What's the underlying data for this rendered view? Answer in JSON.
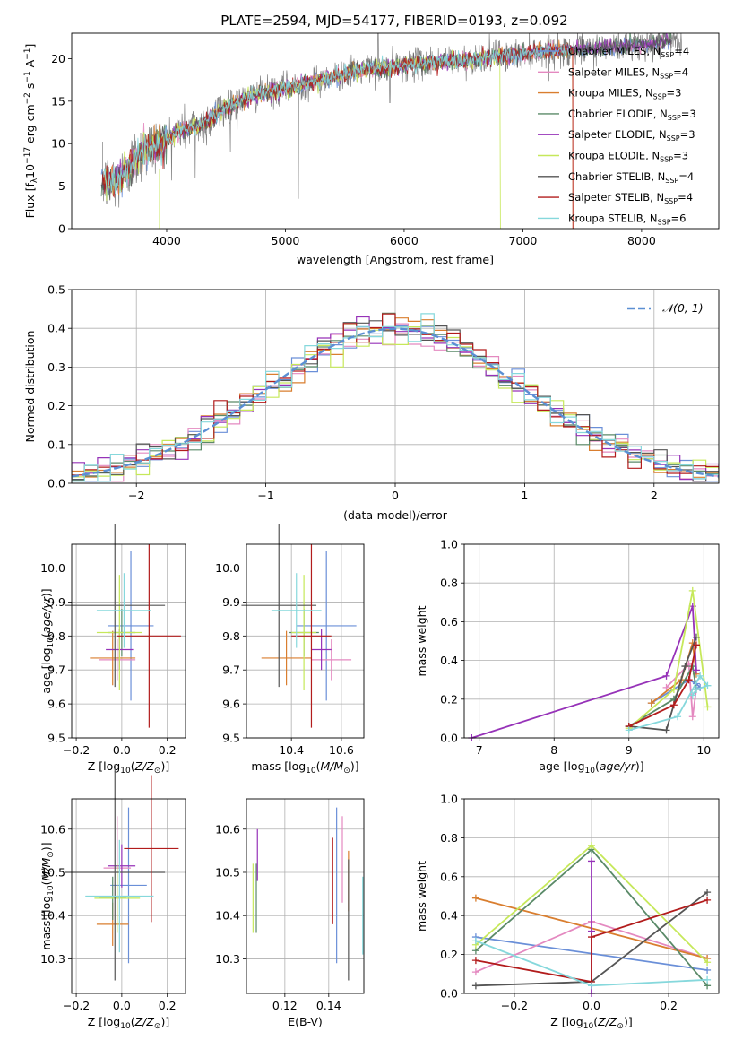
{
  "colors": {
    "chabrier_miles": "#6a8fd8",
    "salpeter_miles": "#e489c0",
    "kroupa_miles": "#d97e2f",
    "chabrier_elodie": "#5a8a68",
    "salpeter_elodie": "#9632b8",
    "kroupa_elodie": "#c6e85a",
    "chabrier_stelib": "#555555",
    "salpeter_stelib": "#b21c1c",
    "kroupa_stelib": "#86d8dc",
    "data": "#808080",
    "gauss": "#5b8fd3"
  },
  "legend": [
    {
      "name": "Chabrier MILES, N",
      "sub": "SSP",
      "rest": "=4",
      "color": "chabrier_miles"
    },
    {
      "name": "Salpeter MILES, N",
      "sub": "SSP",
      "rest": "=4",
      "color": "salpeter_miles"
    },
    {
      "name": "Kroupa MILES, N",
      "sub": "SSP",
      "rest": "=3",
      "color": "kroupa_miles"
    },
    {
      "name": "Chabrier ELODIE, N",
      "sub": "SSP",
      "rest": "=3",
      "color": "chabrier_elodie"
    },
    {
      "name": "Salpeter ELODIE, N",
      "sub": "SSP",
      "rest": "=3",
      "color": "salpeter_elodie"
    },
    {
      "name": "Kroupa ELODIE, N",
      "sub": "SSP",
      "rest": "=3",
      "color": "kroupa_elodie"
    },
    {
      "name": "Chabrier STELIB, N",
      "sub": "SSP",
      "rest": "=4",
      "color": "chabrier_stelib"
    },
    {
      "name": "Salpeter STELIB, N",
      "sub": "SSP",
      "rest": "=4",
      "color": "salpeter_stelib"
    },
    {
      "name": "Kroupa STELIB, N",
      "sub": "SSP",
      "rest": "=6",
      "color": "kroupa_stelib"
    }
  ],
  "chart_data": [
    {
      "type": "line",
      "title": "PLATE=2594, MJD=54177, FIBERID=0193, z=0.092",
      "xlabel": "wavelength [Angstrom, rest frame]",
      "ylabel": "Flux [f",
      "ylabel_parts": [
        "Flux [f",
        "λ",
        "10",
        "−17",
        " erg cm",
        "−2",
        " s",
        "−1",
        " A",
        "−1",
        "]"
      ],
      "xlim": [
        3200,
        8650
      ],
      "ylim": [
        0,
        23
      ],
      "xticks": [
        4000,
        5000,
        6000,
        7000,
        8000
      ],
      "yticks": [
        0,
        5,
        10,
        15,
        20
      ],
      "continuum_x": [
        3450,
        3600,
        3800,
        3950,
        4100,
        4300,
        4500,
        4700,
        4900,
        5100,
        5300,
        5500,
        5700,
        5900,
        6100,
        6300,
        6500,
        6700,
        6900,
        7100,
        7300,
        7500,
        7700,
        7900,
        8100,
        8300
      ],
      "continuum_y": [
        5.2,
        5.8,
        9.2,
        10.0,
        11.5,
        12.2,
        14.3,
        15.5,
        16.2,
        16.8,
        17.5,
        18.2,
        18.8,
        19.0,
        19.4,
        19.6,
        19.8,
        20.2,
        20.4,
        20.8,
        20.9,
        21.1,
        21.3,
        21.6,
        21.8,
        22.2
      ],
      "grid": false,
      "legend_position": "right"
    },
    {
      "type": "area",
      "xlabel": "(data-model)/error",
      "ylabel": "Normed distribution",
      "xlim": [
        -2.5,
        2.5
      ],
      "ylim": [
        0,
        0.5
      ],
      "xticks": [
        -2,
        -1,
        0,
        1,
        2
      ],
      "xtick_labels": [
        "−2",
        "−1",
        "0",
        "1",
        "2"
      ],
      "yticks": [
        0.0,
        0.1,
        0.2,
        0.3,
        0.4,
        0.5
      ],
      "ytick_labels": [
        "0.0",
        "0.1",
        "0.2",
        "0.3",
        "0.4",
        "0.5"
      ],
      "bin_width": 0.1,
      "gauss_label": "𝒩(0, 1)",
      "grid": true,
      "legend_position": "top-right"
    },
    {
      "type": "scatter",
      "xlabel": "Z [log",
      "xlabel_parts": [
        "Z [log",
        "10",
        "(",
        "Z/Z",
        "⊙",
        ")]"
      ],
      "ylabel_parts": [
        "age  [log",
        "10",
        "(",
        "age/yr",
        ")]"
      ],
      "xlim": [
        -0.22,
        0.28
      ],
      "ylim": [
        9.5,
        10.07
      ],
      "xticks": [
        -0.2,
        0.0,
        0.2
      ],
      "xtick_labels": [
        "−0.2",
        "0.0",
        "0.2"
      ],
      "yticks": [
        9.5,
        9.6,
        9.7,
        9.8,
        9.9,
        10.0
      ],
      "ytick_labels": [
        "9.5",
        "9.6",
        "9.7",
        "9.8",
        "9.9",
        "10.0"
      ],
      "points": [
        {
          "c": "chabrier_miles",
          "x": 0.04,
          "y": 9.83,
          "xe": 0.1,
          "ye": 0.22
        },
        {
          "c": "salpeter_miles",
          "x": -0.02,
          "y": 9.73,
          "xe": 0.08,
          "ye": 0.06
        },
        {
          "c": "kroupa_miles",
          "x": -0.04,
          "y": 9.735,
          "xe": 0.1,
          "ye": 0.08
        },
        {
          "c": "chabrier_elodie",
          "x": 0.0,
          "y": 9.81,
          "xe": 0.06,
          "ye": 0.07
        },
        {
          "c": "salpeter_elodie",
          "x": -0.01,
          "y": 9.76,
          "xe": 0.06,
          "ye": 0.06
        },
        {
          "c": "kroupa_elodie",
          "x": -0.01,
          "y": 9.81,
          "xe": 0.1,
          "ye": 0.17
        },
        {
          "c": "chabrier_stelib",
          "x": -0.03,
          "y": 9.89,
          "xe": 0.22,
          "ye": 0.24
        },
        {
          "c": "salpeter_stelib",
          "x": 0.12,
          "y": 9.8,
          "xe": 0.14,
          "ye": 0.27
        },
        {
          "c": "kroupa_stelib",
          "x": 0.01,
          "y": 9.875,
          "xe": 0.12,
          "ye": 0.11
        }
      ]
    },
    {
      "type": "scatter",
      "xlabel_parts": [
        "mass [log",
        "10",
        "(",
        "M/M",
        "⊙",
        ")]"
      ],
      "xlim": [
        10.22,
        10.69
      ],
      "ylim": [
        9.5,
        10.07
      ],
      "xticks": [
        10.4,
        10.6
      ],
      "xtick_labels": [
        "10.4",
        "10.6"
      ],
      "yticks": [
        9.5,
        9.6,
        9.7,
        9.8,
        9.9,
        10.0
      ],
      "ytick_labels": [
        "9.5",
        "9.6",
        "9.7",
        "9.8",
        "9.9",
        "10.0"
      ],
      "points": [
        {
          "c": "chabrier_miles",
          "x": 10.54,
          "y": 9.83,
          "xe": 0.12,
          "ye": 0.22
        },
        {
          "c": "salpeter_miles",
          "x": 10.56,
          "y": 9.73,
          "xe": 0.08,
          "ye": 0.06
        },
        {
          "c": "kroupa_miles",
          "x": 10.38,
          "y": 9.735,
          "xe": 0.1,
          "ye": 0.08
        },
        {
          "c": "chabrier_elodie",
          "x": 10.45,
          "y": 9.81,
          "xe": 0.06,
          "ye": 0.07
        },
        {
          "c": "salpeter_elodie",
          "x": 10.52,
          "y": 9.76,
          "xe": 0.04,
          "ye": 0.06
        },
        {
          "c": "kroupa_elodie",
          "x": 10.45,
          "y": 9.81,
          "xe": 0.05,
          "ye": 0.17
        },
        {
          "c": "chabrier_stelib",
          "x": 10.35,
          "y": 9.89,
          "xe": 0.15,
          "ye": 0.24
        },
        {
          "c": "salpeter_stelib",
          "x": 10.48,
          "y": 9.8,
          "xe": 0.08,
          "ye": 0.27
        },
        {
          "c": "kroupa_stelib",
          "x": 10.42,
          "y": 9.875,
          "xe": 0.1,
          "ye": 0.11
        }
      ]
    },
    {
      "type": "line",
      "xlabel_parts": [
        "age  [log",
        "10",
        "(",
        "age/yr",
        ")]"
      ],
      "ylabel": "mass weight",
      "xlim": [
        6.8,
        10.2
      ],
      "ylim": [
        0,
        1
      ],
      "xticks": [
        7,
        8,
        9,
        10
      ],
      "xtick_labels": [
        "7",
        "8",
        "9",
        "10"
      ],
      "yticks": [
        0.0,
        0.2,
        0.4,
        0.6,
        0.8,
        1.0
      ],
      "ytick_labels": [
        "0.0",
        "0.2",
        "0.4",
        "0.6",
        "0.8",
        "1.0"
      ],
      "grid": true,
      "series": [
        {
          "c": "chabrier_miles",
          "x": [
            9.3,
            9.8,
            9.9,
            9.95
          ],
          "y": [
            0.18,
            0.3,
            0.28,
            0.26
          ]
        },
        {
          "c": "salpeter_miles",
          "x": [
            9.5,
            9.8,
            9.85,
            9.9
          ],
          "y": [
            0.26,
            0.38,
            0.11,
            0.25
          ]
        },
        {
          "c": "kroupa_miles",
          "x": [
            9.3,
            9.7,
            9.85,
            9.9
          ],
          "y": [
            0.18,
            0.3,
            0.49,
            0.33
          ]
        },
        {
          "c": "chabrier_elodie",
          "x": [
            9.0,
            9.6,
            9.85,
            9.9
          ],
          "y": [
            0.06,
            0.2,
            0.37,
            0.25
          ]
        },
        {
          "c": "salpeter_elodie",
          "x": [
            6.9,
            9.5,
            9.85,
            9.9
          ],
          "y": [
            0.0,
            0.32,
            0.68,
            0.35
          ]
        },
        {
          "c": "kroupa_elodie",
          "x": [
            9.0,
            9.6,
            9.85,
            10.05
          ],
          "y": [
            0.05,
            0.25,
            0.76,
            0.16
          ]
        },
        {
          "c": "chabrier_stelib",
          "x": [
            9.0,
            9.5,
            9.75,
            9.9
          ],
          "y": [
            0.06,
            0.04,
            0.37,
            0.52
          ]
        },
        {
          "c": "salpeter_stelib",
          "x": [
            9.0,
            9.6,
            9.8,
            9.9
          ],
          "y": [
            0.06,
            0.17,
            0.3,
            0.48
          ]
        },
        {
          "c": "kroupa_stelib",
          "x": [
            9.0,
            9.65,
            9.95,
            10.05,
            9.9,
            9.85
          ],
          "y": [
            0.04,
            0.11,
            0.32,
            0.27,
            0.25,
            0.22
          ]
        }
      ]
    },
    {
      "type": "scatter",
      "xlabel_parts": [
        "Z [log",
        "10",
        "(",
        "Z/Z",
        "⊙",
        ")]"
      ],
      "ylabel_parts": [
        "mass [log",
        "10",
        "(",
        "M/M",
        "⊙",
        ")]"
      ],
      "xlim": [
        -0.22,
        0.28
      ],
      "ylim": [
        10.22,
        10.67
      ],
      "xticks": [
        -0.2,
        0.0,
        0.2
      ],
      "xtick_labels": [
        "−0.2",
        "0.0",
        "0.2"
      ],
      "yticks": [
        10.3,
        10.4,
        10.5,
        10.6
      ],
      "ytick_labels": [
        "10.3",
        "10.4",
        "10.5",
        "10.6"
      ],
      "points": [
        {
          "c": "chabrier_miles",
          "x": 0.03,
          "y": 10.47,
          "xe": 0.08,
          "ye": 0.18
        },
        {
          "c": "salpeter_miles",
          "x": -0.02,
          "y": 10.51,
          "xe": 0.06,
          "ye": 0.12
        },
        {
          "c": "kroupa_miles",
          "x": -0.04,
          "y": 10.38,
          "xe": 0.07,
          "ye": 0.05
        },
        {
          "c": "chabrier_elodie",
          "x": -0.04,
          "y": 10.44,
          "xe": 0.06,
          "ye": 0.05
        },
        {
          "c": "salpeter_elodie",
          "x": 0.0,
          "y": 10.515,
          "xe": 0.06,
          "ye": 0.05
        },
        {
          "c": "kroupa_elodie",
          "x": -0.02,
          "y": 10.44,
          "xe": 0.1,
          "ye": 0.08
        },
        {
          "c": "chabrier_stelib",
          "x": -0.03,
          "y": 10.5,
          "xe": 0.22,
          "ye": 0.25
        },
        {
          "c": "salpeter_stelib",
          "x": 0.13,
          "y": 10.555,
          "xe": 0.12,
          "ye": 0.17
        },
        {
          "c": "kroupa_stelib",
          "x": -0.01,
          "y": 10.445,
          "xe": 0.15,
          "ye": 0.13
        }
      ]
    },
    {
      "type": "scatter",
      "xlabel": "E(B-V)",
      "xlim": [
        0.1025,
        0.156
      ],
      "ylim": [
        10.22,
        10.67
      ],
      "xticks": [
        0.12,
        0.14
      ],
      "xtick_labels": [
        "0.12",
        "0.14"
      ],
      "yticks": [
        10.3,
        10.4,
        10.5,
        10.6
      ],
      "ytick_labels": [
        "10.3",
        "10.4",
        "10.5",
        "10.6"
      ],
      "points": [
        {
          "c": "chabrier_miles",
          "x": 0.1436,
          "y": 10.47,
          "ye": 0.18
        },
        {
          "c": "salpeter_miles",
          "x": 0.1462,
          "y": 10.53,
          "ye": 0.1
        },
        {
          "c": "kroupa_miles",
          "x": 0.149,
          "y": 10.48,
          "ye": 0.07
        },
        {
          "c": "chabrier_elodie",
          "x": 0.107,
          "y": 10.44,
          "ye": 0.08
        },
        {
          "c": "salpeter_elodie",
          "x": 0.1075,
          "y": 10.54,
          "ye": 0.06
        },
        {
          "c": "kroupa_elodie",
          "x": 0.1055,
          "y": 10.44,
          "ye": 0.08
        },
        {
          "c": "chabrier_stelib",
          "x": 0.149,
          "y": 10.39,
          "ye": 0.14
        },
        {
          "c": "salpeter_stelib",
          "x": 0.1418,
          "y": 10.48,
          "ye": 0.1
        },
        {
          "c": "kroupa_stelib",
          "x": 0.1555,
          "y": 10.4,
          "ye": 0.09
        }
      ]
    },
    {
      "type": "line",
      "xlabel_parts": [
        "Z [log",
        "10",
        "(",
        "Z/Z",
        "⊙",
        ")]"
      ],
      "ylabel": "mass weight",
      "xlim": [
        -0.33,
        0.33
      ],
      "ylim": [
        0,
        1
      ],
      "xticks": [
        -0.2,
        0.0,
        0.2
      ],
      "xtick_labels": [
        "−0.2",
        "0.0",
        "0.2"
      ],
      "yticks": [
        0.0,
        0.2,
        0.4,
        0.6,
        0.8,
        1.0
      ],
      "ytick_labels": [
        "0.0",
        "0.2",
        "0.4",
        "0.6",
        "0.8",
        "1.0"
      ],
      "grid": true,
      "series": [
        {
          "c": "chabrier_miles",
          "x": [
            -0.3,
            0.3
          ],
          "y": [
            0.29,
            0.12
          ]
        },
        {
          "c": "salpeter_miles",
          "x": [
            -0.3,
            0.0,
            0.3
          ],
          "y": [
            0.11,
            0.37,
            0.18
          ]
        },
        {
          "c": "kroupa_miles",
          "x": [
            -0.3,
            0.3
          ],
          "y": [
            0.49,
            0.18
          ]
        },
        {
          "c": "chabrier_elodie",
          "x": [
            -0.3,
            0.0,
            0.3
          ],
          "y": [
            0.22,
            0.74,
            0.04
          ]
        },
        {
          "c": "salpeter_elodie",
          "x": [
            0.0,
            0.0,
            0.0
          ],
          "y": [
            0.68,
            0.32,
            0.0
          ]
        },
        {
          "c": "kroupa_elodie",
          "x": [
            -0.3,
            0.0,
            0.3
          ],
          "y": [
            0.25,
            0.76,
            0.16
          ]
        },
        {
          "c": "chabrier_stelib",
          "x": [
            -0.3,
            0.0,
            0.3
          ],
          "y": [
            0.04,
            0.06,
            0.52
          ]
        },
        {
          "c": "salpeter_stelib",
          "x": [
            -0.3,
            0.0,
            0.0,
            0.3
          ],
          "y": [
            0.17,
            0.06,
            0.29,
            0.48
          ]
        },
        {
          "c": "kroupa_stelib",
          "x": [
            -0.3,
            0.0,
            0.3
          ],
          "y": [
            0.27,
            0.04,
            0.07
          ]
        }
      ]
    }
  ]
}
